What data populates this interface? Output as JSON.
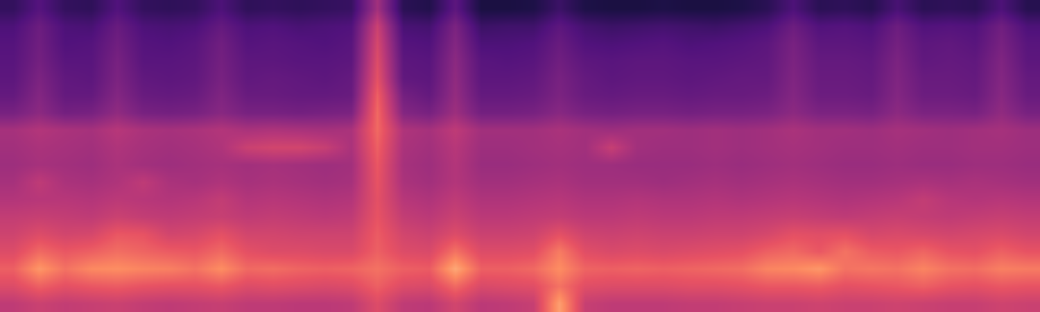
{
  "chart_data": {
    "type": "heatmap",
    "tick_labels": false,
    "zlim": [
      0,
      1
    ],
    "z": [
      [
        0.18,
        0.26,
        0.18,
        0.17,
        0.25,
        0.18,
        0.17,
        0.18,
        0.24,
        0.17,
        0.18,
        0.17,
        0.18,
        0.19,
        0.45,
        0.16,
        0.14,
        0.28,
        0.12,
        0.12,
        0.13,
        0.2,
        0.13,
        0.12,
        0.12,
        0.13,
        0.12,
        0.12,
        0.13,
        0.16,
        0.24,
        0.16,
        0.17,
        0.15,
        0.23,
        0.16,
        0.17,
        0.16,
        0.24,
        0.15
      ],
      [
        0.24,
        0.32,
        0.24,
        0.23,
        0.31,
        0.24,
        0.23,
        0.24,
        0.3,
        0.24,
        0.25,
        0.23,
        0.24,
        0.25,
        0.55,
        0.23,
        0.22,
        0.36,
        0.2,
        0.21,
        0.21,
        0.28,
        0.22,
        0.2,
        0.21,
        0.22,
        0.21,
        0.2,
        0.22,
        0.24,
        0.32,
        0.25,
        0.26,
        0.24,
        0.32,
        0.25,
        0.26,
        0.25,
        0.33,
        0.24
      ],
      [
        0.26,
        0.33,
        0.25,
        0.26,
        0.33,
        0.26,
        0.25,
        0.27,
        0.33,
        0.26,
        0.27,
        0.26,
        0.25,
        0.27,
        0.58,
        0.26,
        0.25,
        0.38,
        0.24,
        0.24,
        0.25,
        0.31,
        0.25,
        0.24,
        0.25,
        0.26,
        0.24,
        0.25,
        0.26,
        0.28,
        0.35,
        0.28,
        0.28,
        0.27,
        0.34,
        0.28,
        0.29,
        0.27,
        0.35,
        0.27
      ],
      [
        0.27,
        0.34,
        0.27,
        0.27,
        0.35,
        0.27,
        0.27,
        0.28,
        0.34,
        0.28,
        0.28,
        0.27,
        0.27,
        0.28,
        0.6,
        0.28,
        0.27,
        0.4,
        0.27,
        0.26,
        0.27,
        0.33,
        0.28,
        0.27,
        0.28,
        0.28,
        0.27,
        0.27,
        0.28,
        0.29,
        0.36,
        0.3,
        0.3,
        0.29,
        0.36,
        0.29,
        0.3,
        0.29,
        0.37,
        0.28
      ],
      [
        0.28,
        0.36,
        0.29,
        0.28,
        0.36,
        0.29,
        0.28,
        0.29,
        0.35,
        0.29,
        0.3,
        0.29,
        0.28,
        0.3,
        0.62,
        0.29,
        0.28,
        0.41,
        0.28,
        0.28,
        0.29,
        0.35,
        0.3,
        0.28,
        0.29,
        0.29,
        0.28,
        0.29,
        0.3,
        0.3,
        0.37,
        0.31,
        0.31,
        0.3,
        0.37,
        0.31,
        0.31,
        0.3,
        0.38,
        0.3
      ],
      [
        0.3,
        0.38,
        0.3,
        0.3,
        0.38,
        0.31,
        0.3,
        0.31,
        0.37,
        0.31,
        0.31,
        0.3,
        0.3,
        0.31,
        0.66,
        0.34,
        0.3,
        0.42,
        0.3,
        0.3,
        0.31,
        0.36,
        0.31,
        0.3,
        0.31,
        0.31,
        0.3,
        0.31,
        0.31,
        0.32,
        0.38,
        0.32,
        0.32,
        0.31,
        0.38,
        0.32,
        0.32,
        0.31,
        0.39,
        0.31
      ],
      [
        0.35,
        0.4,
        0.34,
        0.35,
        0.41,
        0.35,
        0.34,
        0.35,
        0.39,
        0.35,
        0.35,
        0.34,
        0.35,
        0.36,
        0.68,
        0.38,
        0.35,
        0.44,
        0.34,
        0.34,
        0.35,
        0.39,
        0.35,
        0.34,
        0.35,
        0.35,
        0.34,
        0.35,
        0.35,
        0.36,
        0.4,
        0.36,
        0.36,
        0.35,
        0.4,
        0.36,
        0.36,
        0.35,
        0.41,
        0.35
      ],
      [
        0.46,
        0.49,
        0.47,
        0.46,
        0.5,
        0.47,
        0.46,
        0.47,
        0.49,
        0.47,
        0.48,
        0.47,
        0.46,
        0.47,
        0.68,
        0.48,
        0.46,
        0.52,
        0.45,
        0.45,
        0.45,
        0.47,
        0.45,
        0.44,
        0.45,
        0.45,
        0.44,
        0.45,
        0.44,
        0.45,
        0.47,
        0.45,
        0.45,
        0.44,
        0.46,
        0.45,
        0.44,
        0.45,
        0.46,
        0.44
      ],
      [
        0.45,
        0.47,
        0.46,
        0.45,
        0.48,
        0.46,
        0.45,
        0.46,
        0.48,
        0.55,
        0.57,
        0.57,
        0.54,
        0.47,
        0.66,
        0.47,
        0.45,
        0.5,
        0.44,
        0.44,
        0.45,
        0.46,
        0.45,
        0.54,
        0.45,
        0.44,
        0.44,
        0.45,
        0.44,
        0.45,
        0.46,
        0.45,
        0.44,
        0.44,
        0.45,
        0.44,
        0.44,
        0.45,
        0.45,
        0.44
      ],
      [
        0.44,
        0.46,
        0.45,
        0.44,
        0.47,
        0.45,
        0.44,
        0.45,
        0.46,
        0.45,
        0.46,
        0.45,
        0.44,
        0.45,
        0.64,
        0.46,
        0.44,
        0.49,
        0.43,
        0.43,
        0.44,
        0.45,
        0.44,
        0.44,
        0.43,
        0.43,
        0.43,
        0.44,
        0.43,
        0.44,
        0.45,
        0.44,
        0.43,
        0.43,
        0.44,
        0.43,
        0.43,
        0.44,
        0.44,
        0.43
      ],
      [
        0.46,
        0.52,
        0.47,
        0.46,
        0.48,
        0.52,
        0.47,
        0.46,
        0.48,
        0.46,
        0.47,
        0.46,
        0.45,
        0.46,
        0.63,
        0.47,
        0.45,
        0.49,
        0.45,
        0.45,
        0.46,
        0.47,
        0.45,
        0.45,
        0.45,
        0.44,
        0.45,
        0.46,
        0.45,
        0.46,
        0.47,
        0.46,
        0.45,
        0.45,
        0.46,
        0.47,
        0.46,
        0.47,
        0.46,
        0.45
      ],
      [
        0.49,
        0.5,
        0.5,
        0.49,
        0.51,
        0.5,
        0.49,
        0.5,
        0.53,
        0.49,
        0.5,
        0.49,
        0.48,
        0.49,
        0.62,
        0.5,
        0.48,
        0.52,
        0.48,
        0.48,
        0.49,
        0.5,
        0.48,
        0.48,
        0.49,
        0.48,
        0.48,
        0.49,
        0.48,
        0.49,
        0.5,
        0.49,
        0.48,
        0.49,
        0.5,
        0.53,
        0.5,
        0.49,
        0.5,
        0.49
      ],
      [
        0.53,
        0.54,
        0.53,
        0.52,
        0.55,
        0.53,
        0.52,
        0.53,
        0.54,
        0.52,
        0.53,
        0.52,
        0.51,
        0.52,
        0.63,
        0.53,
        0.51,
        0.55,
        0.51,
        0.51,
        0.52,
        0.53,
        0.51,
        0.51,
        0.52,
        0.51,
        0.51,
        0.52,
        0.52,
        0.53,
        0.54,
        0.53,
        0.52,
        0.53,
        0.54,
        0.53,
        0.52,
        0.53,
        0.54,
        0.53
      ],
      [
        0.56,
        0.6,
        0.57,
        0.58,
        0.64,
        0.63,
        0.57,
        0.58,
        0.62,
        0.57,
        0.57,
        0.56,
        0.56,
        0.56,
        0.65,
        0.57,
        0.55,
        0.6,
        0.55,
        0.55,
        0.56,
        0.62,
        0.56,
        0.55,
        0.56,
        0.55,
        0.55,
        0.56,
        0.56,
        0.58,
        0.62,
        0.61,
        0.62,
        0.58,
        0.59,
        0.58,
        0.57,
        0.58,
        0.59,
        0.57
      ],
      [
        0.6,
        0.68,
        0.64,
        0.66,
        0.69,
        0.67,
        0.65,
        0.64,
        0.68,
        0.62,
        0.6,
        0.6,
        0.59,
        0.59,
        0.66,
        0.6,
        0.59,
        0.7,
        0.6,
        0.6,
        0.61,
        0.72,
        0.61,
        0.59,
        0.6,
        0.59,
        0.6,
        0.61,
        0.62,
        0.66,
        0.68,
        0.64,
        0.7,
        0.65,
        0.64,
        0.67,
        0.63,
        0.62,
        0.66,
        0.63
      ],
      [
        0.66,
        0.78,
        0.7,
        0.75,
        0.76,
        0.74,
        0.73,
        0.7,
        0.76,
        0.68,
        0.69,
        0.67,
        0.66,
        0.67,
        0.7,
        0.66,
        0.65,
        0.82,
        0.66,
        0.66,
        0.68,
        0.76,
        0.67,
        0.66,
        0.67,
        0.66,
        0.67,
        0.68,
        0.69,
        0.74,
        0.75,
        0.78,
        0.7,
        0.71,
        0.7,
        0.74,
        0.7,
        0.69,
        0.73,
        0.72
      ],
      [
        0.6,
        0.66,
        0.62,
        0.64,
        0.65,
        0.63,
        0.62,
        0.62,
        0.64,
        0.6,
        0.61,
        0.6,
        0.59,
        0.6,
        0.66,
        0.6,
        0.59,
        0.68,
        0.59,
        0.6,
        0.61,
        0.7,
        0.61,
        0.6,
        0.6,
        0.6,
        0.61,
        0.61,
        0.62,
        0.64,
        0.64,
        0.65,
        0.62,
        0.63,
        0.64,
        0.66,
        0.63,
        0.62,
        0.64,
        0.63
      ],
      [
        0.52,
        0.55,
        0.53,
        0.54,
        0.55,
        0.53,
        0.52,
        0.53,
        0.54,
        0.52,
        0.52,
        0.51,
        0.51,
        0.52,
        0.6,
        0.52,
        0.51,
        0.57,
        0.51,
        0.52,
        0.54,
        0.8,
        0.54,
        0.52,
        0.52,
        0.52,
        0.53,
        0.53,
        0.54,
        0.55,
        0.55,
        0.56,
        0.55,
        0.55,
        0.56,
        0.55,
        0.54,
        0.54,
        0.56,
        0.55
      ]
    ]
  }
}
